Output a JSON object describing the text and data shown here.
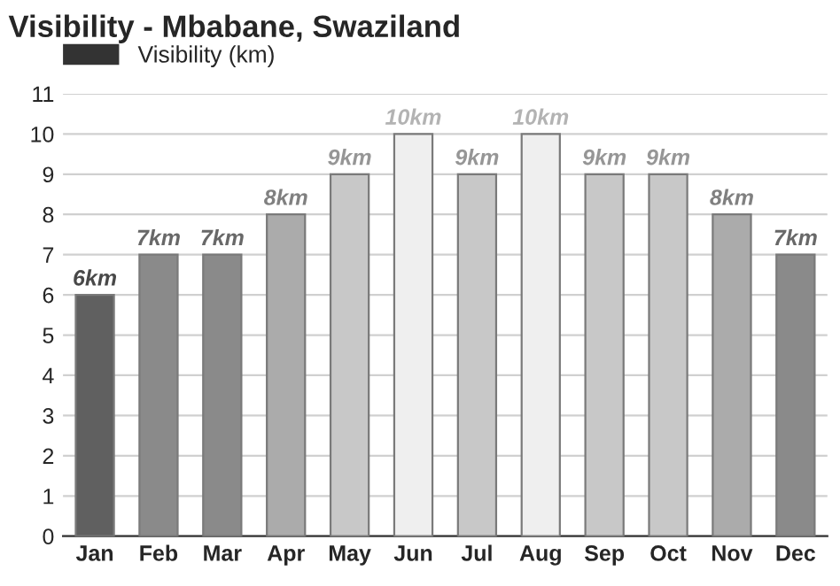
{
  "chart_data": {
    "type": "bar",
    "title": "Visibility - Mbabane, Swaziland",
    "categories": [
      "Jan",
      "Feb",
      "Mar",
      "Apr",
      "May",
      "Jun",
      "Jul",
      "Aug",
      "Sep",
      "Oct",
      "Nov",
      "Dec"
    ],
    "series": [
      {
        "name": "Visibility (km)",
        "color": "#333333",
        "colors": [
          "#606060",
          "#8a8a8a",
          "#8a8a8a",
          "#ababab",
          "#c8c8c8",
          "#efefef",
          "#c8c8c8",
          "#efefef",
          "#c8c8c8",
          "#c8c8c8",
          "#ababab",
          "#8a8a8a"
        ],
        "values": [
          6,
          7,
          7,
          8,
          9,
          10,
          9,
          10,
          9,
          9,
          8,
          7
        ],
        "value_labels": [
          "6km",
          "7km",
          "7km",
          "8km",
          "9km",
          "10km",
          "9km",
          "10km",
          "9km",
          "9km",
          "8km",
          "7km"
        ]
      }
    ],
    "ylim": [
      0,
      11
    ],
    "yticks": [
      0,
      1,
      2,
      3,
      4,
      5,
      6,
      7,
      8,
      9,
      10,
      11
    ],
    "grid": "y",
    "legend": "top left"
  }
}
